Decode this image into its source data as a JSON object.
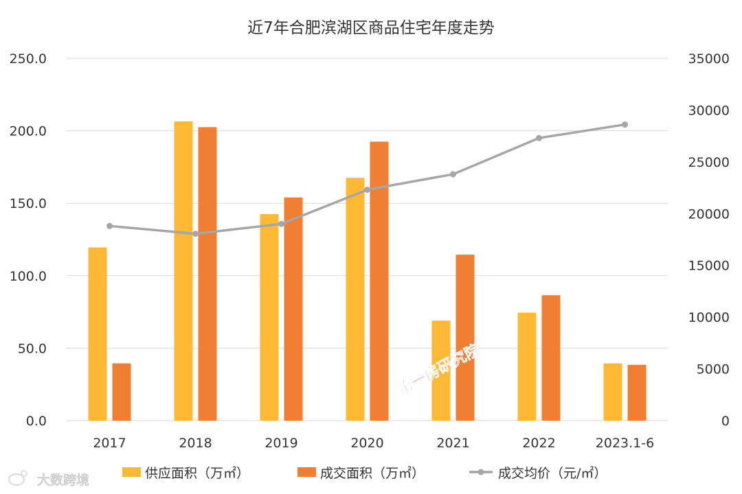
{
  "chart_data": {
    "type": "bar",
    "title": "近7年合肥滨湖区商品住宅年度走势",
    "categories": [
      "2017",
      "2018",
      "2019",
      "2020",
      "2021",
      "2022",
      "2023.1-6"
    ],
    "series": [
      {
        "name": "供应面积（万㎡）",
        "type": "bar",
        "axis": "left",
        "color": "#FFB935",
        "values": [
          119.5,
          206.5,
          142.5,
          167.5,
          69.0,
          74.5,
          39.5
        ]
      },
      {
        "name": "成交面积（万㎡）",
        "type": "bar",
        "axis": "left",
        "color": "#F07E33",
        "values": [
          39.5,
          202.5,
          154.0,
          192.5,
          114.5,
          86.5,
          38.5
        ]
      },
      {
        "name": "成交均价（元/㎡）",
        "type": "line",
        "axis": "right",
        "color": "#A6A6A6",
        "values": [
          18800,
          18050,
          19000,
          22300,
          23800,
          27300,
          28600
        ]
      }
    ],
    "y_left": {
      "min": 0,
      "max": 250,
      "ticks": [
        "0.0",
        "50.0",
        "100.0",
        "150.0",
        "200.0",
        "250.0"
      ]
    },
    "y_right": {
      "min": 0,
      "max": 35000,
      "ticks": [
        "0",
        "5000",
        "10000",
        "15000",
        "20000",
        "25000",
        "30000",
        "35000"
      ]
    },
    "grid": true,
    "legend_position": "bottom"
  },
  "watermarks": {
    "center": "第一房研究院",
    "corner": "大数跨境"
  }
}
